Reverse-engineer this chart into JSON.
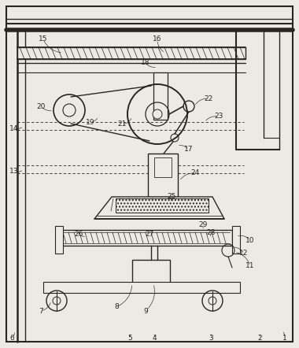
{
  "bg_color": "#edeae4",
  "line_color": "#2a2520",
  "fig_width": 3.8,
  "fig_height": 4.42,
  "dpi": 100
}
